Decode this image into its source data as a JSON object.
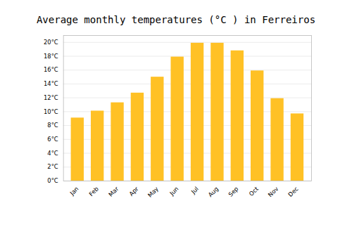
{
  "chart_data": {
    "type": "bar",
    "title": "Average monthly temperatures (°C ) in Ferreiros",
    "categories": [
      "Jan",
      "Feb",
      "Mar",
      "Apr",
      "May",
      "Jun",
      "Jul",
      "Aug",
      "Sep",
      "Oct",
      "Nov",
      "Dec"
    ],
    "values": [
      9.1,
      10.1,
      11.3,
      12.7,
      15.0,
      17.9,
      19.9,
      19.9,
      18.8,
      15.9,
      11.9,
      9.7
    ],
    "color": "#FFC125",
    "ylim": [
      0,
      21
    ],
    "yticks": [
      {
        "value": 0,
        "label": "0°C"
      },
      {
        "value": 2,
        "label": "2°C"
      },
      {
        "value": 4,
        "label": "4°C"
      },
      {
        "value": 6,
        "label": "6°C"
      },
      {
        "value": 8,
        "label": "8°C"
      },
      {
        "value": 10,
        "label": "10°C"
      },
      {
        "value": 12,
        "label": "12°C"
      },
      {
        "value": 14,
        "label": "14°C"
      },
      {
        "value": 16,
        "label": "16°C"
      },
      {
        "value": 18,
        "label": "18°C"
      },
      {
        "value": 20,
        "label": "20°C"
      }
    ],
    "grid": true
  }
}
